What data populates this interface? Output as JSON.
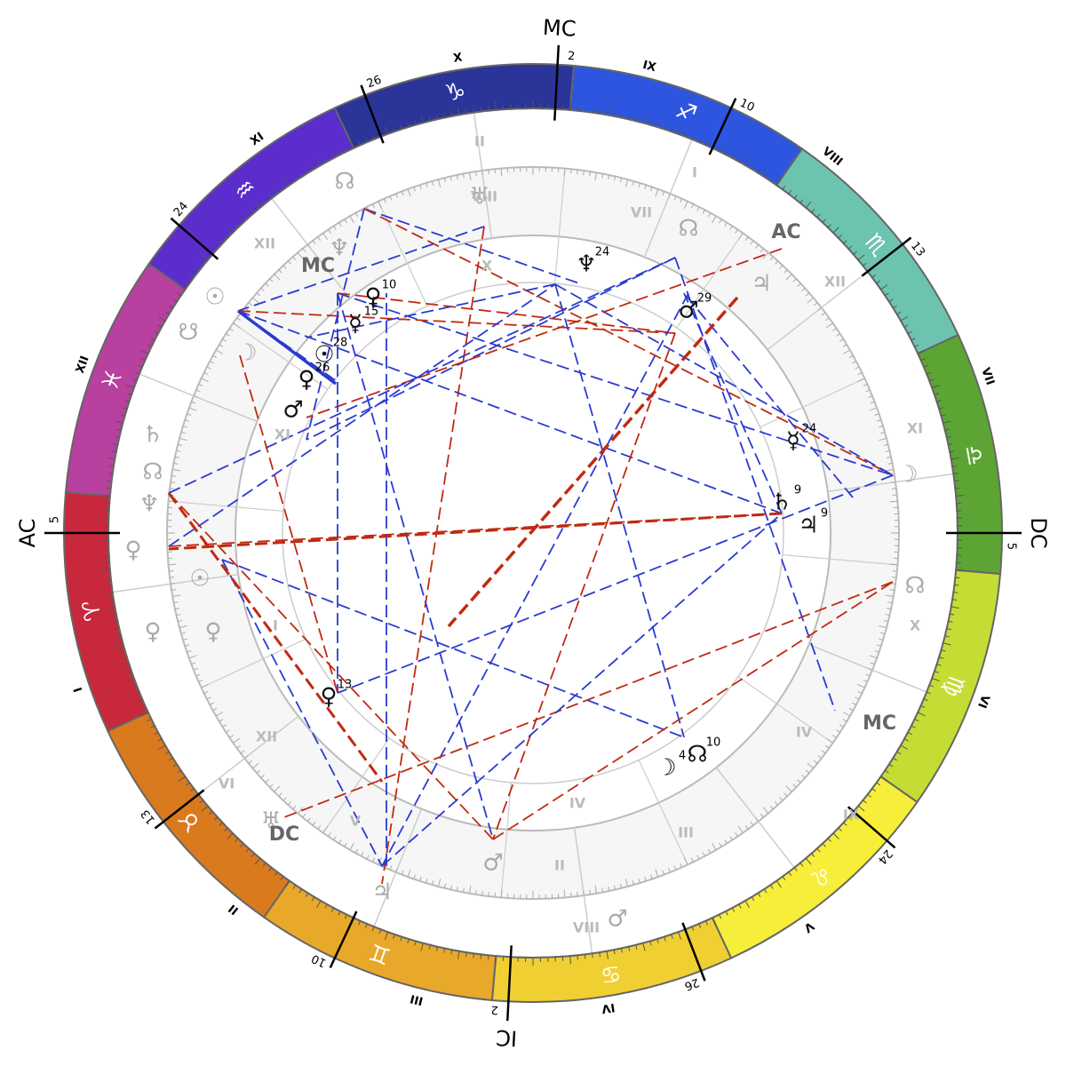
{
  "zodiac": [
    {
      "glyph": "♈",
      "color": "#c8283c"
    },
    {
      "glyph": "♉",
      "color": "#d97a1e"
    },
    {
      "glyph": "♊",
      "color": "#e8a82a"
    },
    {
      "glyph": "♋",
      "color": "#f0cf33"
    },
    {
      "glyph": "♌",
      "color": "#f7ee3a"
    },
    {
      "glyph": "♍",
      "color": "#c5dc34"
    },
    {
      "glyph": "♎",
      "color": "#5ca534"
    },
    {
      "glyph": "♏",
      "color": "#6cc3b0"
    },
    {
      "glyph": "♐",
      "color": "#2d55e0"
    },
    {
      "glyph": "♑",
      "color": "#2b3499"
    },
    {
      "glyph": "♒",
      "color": "#5b2dcc"
    },
    {
      "glyph": "♓",
      "color": "#b8409e"
    }
  ],
  "house_cusps": [
    {
      "numeral": "I",
      "degree": 5,
      "angle": "AC"
    },
    {
      "numeral": "II",
      "degree": 13
    },
    {
      "numeral": "III",
      "degree": 10
    },
    {
      "numeral": "IV",
      "degree": 2,
      "angle": "IC"
    },
    {
      "numeral": "V",
      "degree": 26
    },
    {
      "numeral": "VI",
      "degree": 24
    },
    {
      "numeral": "VII",
      "degree": 5,
      "angle": "DC"
    },
    {
      "numeral": "VIII",
      "degree": 13
    },
    {
      "numeral": "IX",
      "degree": 10
    },
    {
      "numeral": "X",
      "degree": 2,
      "angle": "MC"
    },
    {
      "numeral": "XI",
      "degree": 26
    },
    {
      "numeral": "XII",
      "degree": 24
    }
  ],
  "planets": [
    {
      "glyph": "♆",
      "degree": 24,
      "color": "#111"
    },
    {
      "glyph": "♂",
      "degree": 29,
      "color": "#111"
    },
    {
      "glyph": "☿",
      "degree": 24,
      "color": "#111"
    },
    {
      "glyph": "♄",
      "degree": 9,
      "color": "#111"
    },
    {
      "glyph": "♃",
      "degree": 9,
      "color": "#111"
    },
    {
      "glyph": "☊",
      "degree": 10,
      "color": "#111"
    },
    {
      "glyph": "☽",
      "degree": 4,
      "color": "#111"
    },
    {
      "glyph": "♀",
      "degree": 13,
      "color": "#111"
    },
    {
      "glyph": "♀",
      "degree": 10,
      "color": "#111"
    },
    {
      "glyph": "☿",
      "degree": 15,
      "color": "#111"
    },
    {
      "glyph": "☉",
      "degree": 28,
      "color": "#111"
    },
    {
      "glyph": "♀",
      "degree": 26,
      "color": "#111"
    },
    {
      "glyph": "♂",
      "color": "#111"
    },
    {
      "glyph": "☊",
      "color": "#aaa"
    },
    {
      "glyph": "♅",
      "color": "#aaa"
    },
    {
      "glyph": "☊",
      "color": "#aaa"
    },
    {
      "glyph": "♆",
      "color": "#aaa"
    },
    {
      "glyph": "♃",
      "color": "#aaa"
    },
    {
      "glyph": "☉",
      "color": "#aaa"
    },
    {
      "glyph": "☋",
      "color": "#aaa"
    },
    {
      "glyph": "☽",
      "color": "#aaa"
    },
    {
      "glyph": "♄",
      "color": "#aaa"
    },
    {
      "glyph": "☊",
      "color": "#aaa"
    },
    {
      "glyph": "♆",
      "color": "#aaa"
    },
    {
      "glyph": "♀",
      "color": "#aaa"
    },
    {
      "glyph": "☉",
      "color": "#aaa"
    },
    {
      "glyph": "♀",
      "color": "#aaa"
    },
    {
      "glyph": "♀",
      "color": "#aaa"
    },
    {
      "glyph": "☽",
      "color": "#aaa"
    },
    {
      "glyph": "☊",
      "color": "#aaa"
    },
    {
      "glyph": "♅",
      "color": "#aaa"
    },
    {
      "glyph": "♃",
      "color": "#aaa"
    },
    {
      "glyph": "♂",
      "color": "#aaa"
    },
    {
      "glyph": "♂",
      "color": "#aaa"
    }
  ],
  "inner_labels": [
    "MC",
    "AC",
    "MC",
    "DC",
    "II",
    "I",
    "VIII",
    "VII",
    "XII",
    "XI",
    "X",
    "IX",
    "VIII",
    "II",
    "III",
    "IV",
    "IV",
    "XII",
    "VI",
    "V",
    "I",
    "XII",
    "X",
    "XI"
  ]
}
